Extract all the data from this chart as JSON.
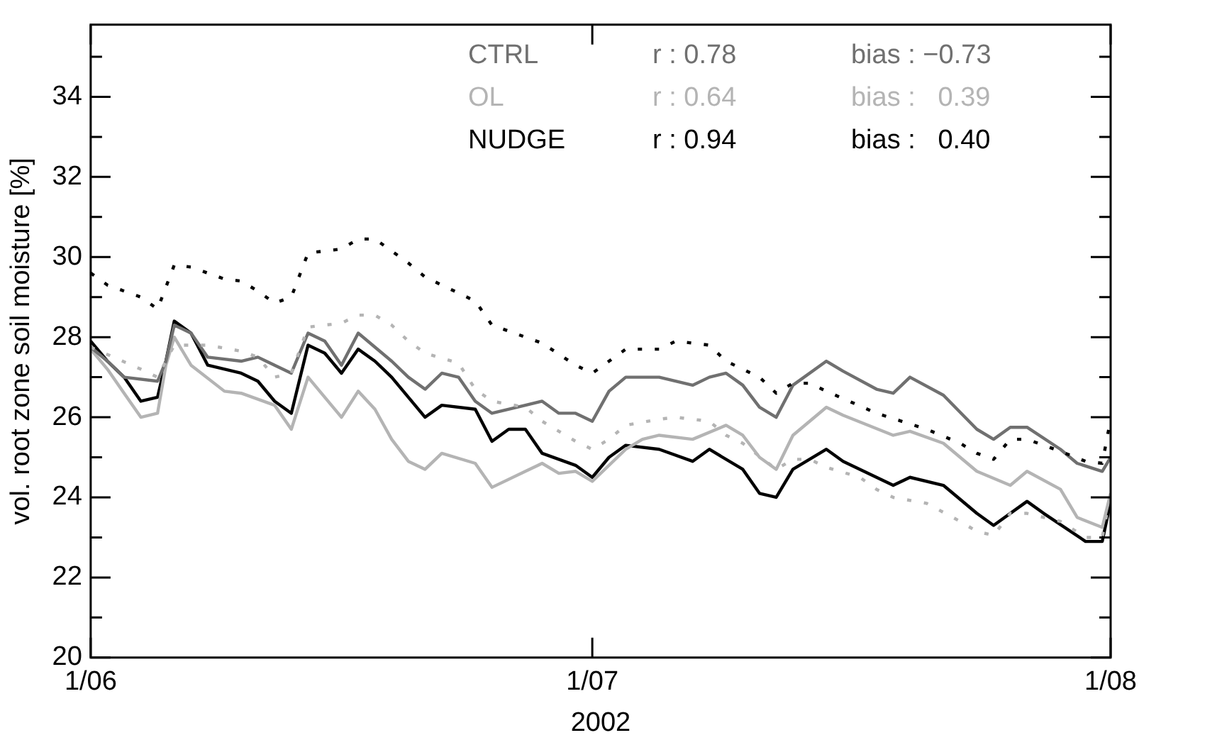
{
  "chart_data": {
    "type": "line",
    "xlabel": "2002",
    "ylabel": "vol. root zone soil moisture [%]",
    "xlim": [
      "2002-06-01",
      "2002-08-01"
    ],
    "xticks": [
      {
        "value": "2002-06-01",
        "label": "1/06"
      },
      {
        "value": "2002-07-01",
        "label": "1/07"
      },
      {
        "value": "2002-08-01",
        "label": "1/08"
      }
    ],
    "ylim": [
      20,
      35.8
    ],
    "yticks": [
      20,
      {
        "value": 21,
        "label": null
      },
      22,
      {
        "value": 23,
        "label": null
      },
      24,
      {
        "value": 25,
        "label": null
      },
      26,
      {
        "value": 27,
        "label": null
      },
      28,
      {
        "value": 29,
        "label": null
      },
      30,
      {
        "value": 31,
        "label": null
      },
      32,
      {
        "value": 33,
        "label": null
      },
      34,
      {
        "value": 35,
        "label": null
      }
    ],
    "grid": false,
    "legend": "top",
    "marker": "none",
    "annotations": [
      "r : 0.78",
      "bias : −0.73",
      "r : 0.64",
      "bias :   0.39",
      "r : 0.94",
      "bias :   0.40"
    ],
    "series": [
      {
        "color": "#000000",
        "line_style": "dotted",
        "x": [
          "2002-06-01",
          "2002-06-02",
          "2002-06-04",
          "2002-06-05",
          "2002-06-06",
          "2002-06-07",
          "2002-06-09",
          "2002-06-10",
          "2002-06-11",
          "2002-06-12",
          "2002-06-13",
          "2002-06-14",
          "2002-06-16",
          "2002-06-17",
          "2002-06-18",
          "2002-06-19",
          "2002-06-20",
          "2002-06-21",
          "2002-06-24",
          "2002-06-25",
          "2002-06-28",
          "2002-06-30",
          "2002-07-01",
          "2002-07-02",
          "2002-07-03",
          "2002-07-05",
          "2002-07-06",
          "2002-07-08",
          "2002-07-09",
          "2002-07-11",
          "2002-07-12",
          "2002-07-13",
          "2002-07-14",
          "2002-07-15",
          "2002-07-18",
          "2002-07-21",
          "2002-07-23",
          "2002-07-24",
          "2002-07-25",
          "2002-07-26",
          "2002-07-27",
          "2002-07-29",
          "2002-07-30T12:00",
          "2002-07-31T12:00",
          "2002-08-01"
        ],
        "values": [
          29.6,
          29.3,
          29.0,
          28.7,
          29.8,
          29.75,
          29.45,
          29.4,
          29.15,
          28.85,
          29.0,
          30.1,
          30.2,
          30.45,
          30.45,
          30.15,
          29.85,
          29.5,
          28.9,
          28.3,
          27.85,
          27.3,
          27.1,
          27.4,
          27.7,
          27.7,
          27.9,
          27.8,
          27.4,
          27.0,
          26.6,
          26.85,
          26.85,
          26.65,
          26.1,
          25.7,
          25.35,
          25.1,
          24.95,
          25.45,
          25.45,
          25.15,
          24.9,
          24.85,
          25.95
        ]
      },
      {
        "color": "#b4b4b4",
        "line_style": "dotted",
        "x": [
          "2002-06-01",
          "2002-06-04",
          "2002-06-05",
          "2002-06-06",
          "2002-06-08",
          "2002-06-10",
          "2002-06-11",
          "2002-06-12",
          "2002-06-13",
          "2002-06-14",
          "2002-06-16",
          "2002-06-17",
          "2002-06-18",
          "2002-06-19",
          "2002-06-20",
          "2002-06-21",
          "2002-06-23",
          "2002-06-24",
          "2002-06-25",
          "2002-06-27",
          "2002-06-28",
          "2002-06-30",
          "2002-07-01",
          "2002-07-02",
          "2002-07-03",
          "2002-07-05",
          "2002-07-06",
          "2002-07-08",
          "2002-07-09",
          "2002-07-10",
          "2002-07-12",
          "2002-07-13",
          "2002-07-14",
          "2002-07-15",
          "2002-07-17",
          "2002-07-18",
          "2002-07-19",
          "2002-07-21",
          "2002-07-23",
          "2002-07-24",
          "2002-07-25",
          "2002-07-26",
          "2002-07-27",
          "2002-07-29",
          "2002-07-30T12:00",
          "2002-07-31T12:00",
          "2002-08-01"
        ],
        "values": [
          27.75,
          27.2,
          27.0,
          27.8,
          27.8,
          27.65,
          27.5,
          27.0,
          27.1,
          28.25,
          28.35,
          28.55,
          28.55,
          28.3,
          27.9,
          27.6,
          27.35,
          26.7,
          26.4,
          26.25,
          25.9,
          25.4,
          25.2,
          25.45,
          25.8,
          25.95,
          26.0,
          25.9,
          25.55,
          25.35,
          24.7,
          24.95,
          24.95,
          24.75,
          24.5,
          24.2,
          24.0,
          23.85,
          23.4,
          23.15,
          23.05,
          23.6,
          23.6,
          23.4,
          23.0,
          23.0,
          24.1
        ]
      },
      {
        "name": "CTRL",
        "color": "#707070",
        "x": [
          "2002-06-01",
          "2002-06-02",
          "2002-06-03",
          "2002-06-05",
          "2002-06-05T12:00",
          "2002-06-06",
          "2002-06-07",
          "2002-06-08",
          "2002-06-10",
          "2002-06-11",
          "2002-06-12",
          "2002-06-13",
          "2002-06-14",
          "2002-06-15",
          "2002-06-16",
          "2002-06-17",
          "2002-06-18",
          "2002-06-19",
          "2002-06-20",
          "2002-06-21",
          "2002-06-22",
          "2002-06-23",
          "2002-06-24",
          "2002-06-25",
          "2002-06-27",
          "2002-06-28",
          "2002-06-29",
          "2002-06-30",
          "2002-07-01",
          "2002-07-02",
          "2002-07-03",
          "2002-07-05",
          "2002-07-07",
          "2002-07-08",
          "2002-07-09",
          "2002-07-10",
          "2002-07-11",
          "2002-07-12",
          "2002-07-13",
          "2002-07-15",
          "2002-07-16",
          "2002-07-18",
          "2002-07-19",
          "2002-07-20",
          "2002-07-22",
          "2002-07-24",
          "2002-07-25",
          "2002-07-26",
          "2002-07-27",
          "2002-07-29",
          "2002-07-30",
          "2002-07-31T12:00",
          "2002-08-01"
        ],
        "values": [
          27.75,
          27.4,
          27.0,
          26.9,
          27.4,
          28.3,
          28.1,
          27.5,
          27.4,
          27.5,
          27.3,
          27.1,
          28.1,
          27.9,
          27.3,
          28.1,
          27.75,
          27.4,
          27.0,
          26.7,
          27.1,
          27.0,
          26.4,
          26.1,
          26.3,
          26.4,
          26.1,
          26.1,
          25.9,
          26.65,
          27.0,
          27.0,
          26.8,
          27.0,
          27.1,
          26.8,
          26.25,
          26.0,
          26.8,
          27.4,
          27.15,
          26.7,
          26.6,
          27.0,
          26.55,
          25.7,
          25.45,
          25.75,
          25.75,
          25.2,
          24.85,
          24.65,
          25.0
        ]
      },
      {
        "name": "OL",
        "color": "#b4b4b4",
        "x": [
          "2002-06-01",
          "2002-06-02",
          "2002-06-03",
          "2002-06-04",
          "2002-06-05",
          "2002-06-05T12:00",
          "2002-06-06",
          "2002-06-07",
          "2002-06-09",
          "2002-06-10",
          "2002-06-12",
          "2002-06-13",
          "2002-06-14",
          "2002-06-15",
          "2002-06-16",
          "2002-06-17",
          "2002-06-18",
          "2002-06-19",
          "2002-06-20",
          "2002-06-21",
          "2002-06-22",
          "2002-06-24",
          "2002-06-25",
          "2002-06-27",
          "2002-06-28",
          "2002-06-29",
          "2002-06-30",
          "2002-07-01",
          "2002-07-03",
          "2002-07-04",
          "2002-07-05",
          "2002-07-07",
          "2002-07-09",
          "2002-07-10",
          "2002-07-11",
          "2002-07-12",
          "2002-07-13",
          "2002-07-15",
          "2002-07-16",
          "2002-07-19",
          "2002-07-20",
          "2002-07-22",
          "2002-07-24",
          "2002-07-26",
          "2002-07-27",
          "2002-07-29",
          "2002-07-30",
          "2002-07-31T12:00",
          "2002-08-01"
        ],
        "values": [
          27.7,
          27.2,
          26.6,
          26.0,
          26.1,
          27.3,
          28.0,
          27.3,
          26.65,
          26.6,
          26.3,
          25.7,
          27.0,
          26.5,
          26.0,
          26.65,
          26.2,
          25.45,
          24.9,
          24.7,
          25.1,
          24.85,
          24.25,
          24.65,
          24.85,
          24.6,
          24.65,
          24.4,
          25.2,
          25.45,
          25.55,
          25.45,
          25.8,
          25.55,
          25.0,
          24.7,
          25.55,
          26.25,
          26.05,
          25.55,
          25.65,
          25.35,
          24.65,
          24.3,
          24.65,
          24.2,
          23.5,
          23.25,
          24.1
        ]
      },
      {
        "name": "NUDGE",
        "color": "#000000",
        "x": [
          "2002-06-01",
          "2002-06-02",
          "2002-06-03",
          "2002-06-04",
          "2002-06-05",
          "2002-06-05T12:00",
          "2002-06-06",
          "2002-06-07",
          "2002-06-07T12:00",
          "2002-06-08",
          "2002-06-10",
          "2002-06-11",
          "2002-06-12",
          "2002-06-13",
          "2002-06-14",
          "2002-06-15",
          "2002-06-16",
          "2002-06-17",
          "2002-06-18",
          "2002-06-19",
          "2002-06-20",
          "2002-06-21",
          "2002-06-22",
          "2002-06-24",
          "2002-06-25",
          "2002-06-26",
          "2002-06-27",
          "2002-06-28",
          "2002-06-30",
          "2002-07-01",
          "2002-07-02",
          "2002-07-03",
          "2002-07-05",
          "2002-07-07",
          "2002-07-08",
          "2002-07-10",
          "2002-07-11",
          "2002-07-12",
          "2002-07-13",
          "2002-07-15",
          "2002-07-16",
          "2002-07-17",
          "2002-07-19",
          "2002-07-20",
          "2002-07-22",
          "2002-07-24",
          "2002-07-25",
          "2002-07-27",
          "2002-07-28",
          "2002-07-30T12:00",
          "2002-07-31T12:00",
          "2002-08-01"
        ],
        "values": [
          27.9,
          27.4,
          27.0,
          26.4,
          26.5,
          27.4,
          28.4,
          28.1,
          27.7,
          27.3,
          27.1,
          26.9,
          26.4,
          26.1,
          27.8,
          27.6,
          27.1,
          27.7,
          27.4,
          27.0,
          26.5,
          26.0,
          26.3,
          26.2,
          25.4,
          25.7,
          25.7,
          25.1,
          24.8,
          24.5,
          25.0,
          25.3,
          25.2,
          24.9,
          25.2,
          24.7,
          24.1,
          24.0,
          24.7,
          25.2,
          24.9,
          24.7,
          24.3,
          24.5,
          24.3,
          23.6,
          23.3,
          23.9,
          23.6,
          22.9,
          22.9,
          23.9
        ]
      }
    ]
  }
}
